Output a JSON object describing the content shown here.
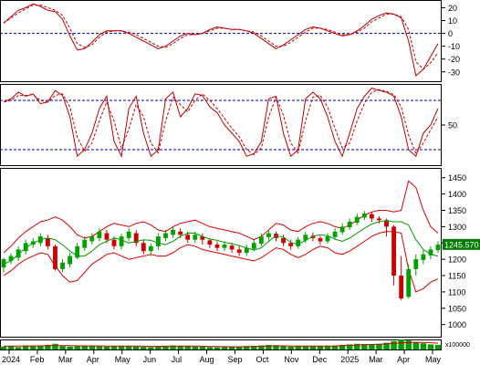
{
  "chart_data": [
    {
      "id": "momentum",
      "type": "line",
      "ylim": [
        -38,
        26
      ],
      "ticks": [
        20,
        10,
        0,
        -10,
        -20,
        -30
      ],
      "reference_line": 0,
      "series": [
        {
          "values": [
            8,
            13,
            18,
            20,
            23,
            21,
            18,
            17,
            11,
            -2,
            -13,
            -12,
            -7,
            -1,
            2,
            2,
            2,
            0,
            -3,
            -6,
            -9,
            -12,
            -10,
            -6,
            -2,
            0,
            -1,
            0,
            3,
            5,
            4,
            3,
            3,
            2,
            0,
            -4,
            -8,
            -12,
            -9,
            -5,
            -1,
            3,
            5,
            4,
            2,
            0,
            -2,
            -1,
            2,
            6,
            11,
            14,
            16,
            15,
            12,
            -6,
            -33,
            -28,
            -18,
            -8
          ],
          "color": "#c00000"
        },
        {
          "values": [
            8,
            12,
            16,
            19,
            22,
            22,
            20,
            18,
            14,
            4,
            -8,
            -11,
            -9,
            -3,
            1,
            2,
            2,
            1,
            -1,
            -4,
            -7,
            -10,
            -11,
            -8,
            -4,
            -1,
            -1,
            0,
            2,
            4,
            4,
            3,
            3,
            2,
            1,
            -2,
            -6,
            -10,
            -10,
            -7,
            -3,
            1,
            4,
            4,
            3,
            1,
            -1,
            -1,
            1,
            4,
            9,
            12,
            15,
            15,
            13,
            3,
            -22,
            -28,
            -23,
            -15
          ],
          "color": "#c00000",
          "dashed": true
        }
      ]
    },
    {
      "id": "oscillator",
      "type": "line",
      "ylim": [
        0,
        100
      ],
      "ticks": [
        50
      ],
      "reference_lines": [
        80,
        20
      ],
      "series": [
        {
          "values": [
            78,
            82,
            90,
            85,
            88,
            76,
            78,
            92,
            86,
            60,
            12,
            20,
            40,
            70,
            85,
            30,
            12,
            70,
            85,
            40,
            12,
            20,
            82,
            90,
            60,
            70,
            88,
            86,
            72,
            65,
            50,
            40,
            30,
            12,
            15,
            30,
            82,
            85,
            40,
            12,
            20,
            82,
            90,
            82,
            60,
            30,
            12,
            40,
            70,
            85,
            95,
            92,
            90,
            85,
            60,
            20,
            12,
            40,
            50,
            70
          ],
          "color": "#c00000"
        },
        {
          "values": [
            78,
            80,
            86,
            86,
            87,
            80,
            78,
            86,
            88,
            72,
            35,
            18,
            28,
            55,
            78,
            55,
            22,
            45,
            75,
            60,
            28,
            16,
            55,
            84,
            75,
            66,
            80,
            88,
            80,
            70,
            58,
            46,
            36,
            20,
            14,
            22,
            60,
            84,
            62,
            28,
            16,
            55,
            84,
            86,
            72,
            46,
            22,
            28,
            55,
            76,
            90,
            93,
            91,
            87,
            72,
            38,
            15,
            28,
            44,
            60
          ],
          "color": "#c00000",
          "dashed": true
        }
      ]
    },
    {
      "id": "price",
      "type": "candlestick",
      "ylim": [
        960,
        1480
      ],
      "ticks": [
        1450,
        1400,
        1350,
        1300,
        1250,
        1200,
        1150,
        1100,
        1050,
        1000
      ],
      "last_value": "1245.570",
      "bollinger_upper": [
        1220,
        1240,
        1265,
        1285,
        1300,
        1315,
        1320,
        1330,
        1320,
        1300,
        1275,
        1265,
        1270,
        1285,
        1300,
        1310,
        1305,
        1300,
        1310,
        1315,
        1305,
        1290,
        1285,
        1300,
        1310,
        1315,
        1320,
        1310,
        1300,
        1295,
        1290,
        1285,
        1280,
        1270,
        1260,
        1270,
        1290,
        1310,
        1305,
        1290,
        1285,
        1300,
        1310,
        1315,
        1310,
        1300,
        1295,
        1305,
        1320,
        1335,
        1345,
        1350,
        1350,
        1345,
        1350,
        1440,
        1420,
        1350,
        1300,
        1280
      ],
      "bollinger_lower": [
        1150,
        1165,
        1185,
        1200,
        1210,
        1220,
        1215,
        1180,
        1150,
        1130,
        1135,
        1160,
        1185,
        1200,
        1215,
        1220,
        1210,
        1200,
        1205,
        1210,
        1215,
        1210,
        1210,
        1220,
        1235,
        1245,
        1240,
        1230,
        1225,
        1220,
        1215,
        1210,
        1205,
        1200,
        1195,
        1205,
        1220,
        1235,
        1230,
        1215,
        1205,
        1215,
        1230,
        1240,
        1235,
        1220,
        1215,
        1225,
        1240,
        1255,
        1270,
        1280,
        1285,
        1285,
        1280,
        1170,
        1100,
        1110,
        1130,
        1140
      ],
      "ma": [
        1185,
        1195,
        1215,
        1235,
        1250,
        1260,
        1265,
        1260,
        1245,
        1225,
        1210,
        1210,
        1225,
        1245,
        1255,
        1265,
        1260,
        1250,
        1255,
        1260,
        1258,
        1250,
        1245,
        1255,
        1270,
        1280,
        1280,
        1270,
        1262,
        1258,
        1252,
        1248,
        1242,
        1235,
        1228,
        1235,
        1255,
        1272,
        1268,
        1252,
        1245,
        1258,
        1270,
        1275,
        1272,
        1262,
        1255,
        1265,
        1280,
        1295,
        1308,
        1315,
        1318,
        1315,
        1315,
        1305,
        1260,
        1230,
        1215,
        1210
      ],
      "candles": [
        [
          1175,
          1200,
          1160,
          1205
        ],
        [
          1195,
          1210,
          1185,
          1218
        ],
        [
          1205,
          1230,
          1195,
          1240
        ],
        [
          1225,
          1250,
          1215,
          1260
        ],
        [
          1245,
          1255,
          1235,
          1265
        ],
        [
          1250,
          1270,
          1240,
          1280
        ],
        [
          1265,
          1240,
          1230,
          1275
        ],
        [
          1240,
          1170,
          1165,
          1245
        ],
        [
          1170,
          1190,
          1160,
          1200
        ],
        [
          1185,
          1210,
          1175,
          1220
        ],
        [
          1205,
          1240,
          1200,
          1250
        ],
        [
          1235,
          1260,
          1225,
          1270
        ],
        [
          1255,
          1270,
          1245,
          1280
        ],
        [
          1265,
          1285,
          1255,
          1295
        ],
        [
          1280,
          1260,
          1250,
          1290
        ],
        [
          1260,
          1240,
          1230,
          1270
        ],
        [
          1240,
          1270,
          1230,
          1278
        ],
        [
          1265,
          1285,
          1255,
          1295
        ],
        [
          1280,
          1250,
          1240,
          1290
        ],
        [
          1250,
          1225,
          1215,
          1260
        ],
        [
          1225,
          1240,
          1210,
          1248
        ],
        [
          1240,
          1270,
          1230,
          1280
        ],
        [
          1265,
          1280,
          1255,
          1290
        ],
        [
          1275,
          1290,
          1265,
          1300
        ],
        [
          1285,
          1275,
          1265,
          1295
        ],
        [
          1275,
          1260,
          1250,
          1285
        ],
        [
          1260,
          1275,
          1250,
          1285
        ],
        [
          1270,
          1260,
          1245,
          1280
        ],
        [
          1258,
          1245,
          1235,
          1265
        ],
        [
          1245,
          1235,
          1225,
          1255
        ],
        [
          1235,
          1245,
          1225,
          1255
        ],
        [
          1242,
          1230,
          1220,
          1250
        ],
        [
          1230,
          1220,
          1210,
          1240
        ],
        [
          1220,
          1235,
          1210,
          1245
        ],
        [
          1232,
          1250,
          1225,
          1260
        ],
        [
          1248,
          1270,
          1240,
          1280
        ],
        [
          1268,
          1280,
          1258,
          1290
        ],
        [
          1278,
          1265,
          1255,
          1285
        ],
        [
          1265,
          1250,
          1240,
          1275
        ],
        [
          1250,
          1240,
          1230,
          1260
        ],
        [
          1240,
          1260,
          1232,
          1268
        ],
        [
          1258,
          1275,
          1250,
          1285
        ],
        [
          1272,
          1265,
          1255,
          1282
        ],
        [
          1265,
          1255,
          1245,
          1272
        ],
        [
          1255,
          1270,
          1248,
          1280
        ],
        [
          1268,
          1285,
          1260,
          1295
        ],
        [
          1283,
          1300,
          1275,
          1310
        ],
        [
          1298,
          1315,
          1290,
          1325
        ],
        [
          1312,
          1330,
          1305,
          1340
        ],
        [
          1328,
          1340,
          1320,
          1348
        ],
        [
          1338,
          1325,
          1315,
          1345
        ],
        [
          1325,
          1320,
          1310,
          1332
        ],
        [
          1320,
          1300,
          1270,
          1325
        ],
        [
          1300,
          1150,
          1120,
          1305
        ],
        [
          1150,
          1080,
          1075,
          1210
        ],
        [
          1085,
          1170,
          1080,
          1185
        ],
        [
          1170,
          1200,
          1150,
          1215
        ],
        [
          1198,
          1215,
          1185,
          1228
        ],
        [
          1212,
          1230,
          1200,
          1240
        ],
        [
          1228,
          1245,
          1220,
          1255
        ]
      ]
    },
    {
      "id": "volume",
      "type": "bar",
      "unit_label": "x100000",
      "ylim": [
        0,
        100
      ],
      "values": [
        35,
        40,
        30,
        45,
        38,
        42,
        50,
        60,
        40,
        35,
        38,
        42,
        45,
        40,
        35,
        38,
        40,
        42,
        36,
        32,
        30,
        35,
        40,
        45,
        42,
        38,
        35,
        33,
        30,
        28,
        30,
        32,
        35,
        40,
        42,
        45,
        50,
        48,
        40,
        35,
        38,
        42,
        40,
        38,
        40,
        45,
        50,
        55,
        60,
        58,
        55,
        60,
        70,
        85,
        100,
        90,
        75,
        65,
        55,
        50
      ],
      "ma": [
        40,
        40,
        40,
        41,
        41,
        42,
        43,
        44,
        44,
        43,
        42,
        42,
        42,
        41,
        40,
        40,
        40,
        40,
        39,
        38,
        37,
        37,
        38,
        39,
        40,
        40,
        39,
        38,
        36,
        35,
        34,
        33,
        33,
        34,
        36,
        38,
        40,
        42,
        42,
        41,
        40,
        40,
        40,
        40,
        40,
        41,
        43,
        46,
        49,
        52,
        54,
        56,
        59,
        63,
        68,
        72,
        74,
        73,
        70,
        66
      ]
    }
  ],
  "x_axis": {
    "labels": [
      "2024",
      "Feb",
      "Mar",
      "Apr",
      "May",
      "Jun",
      "Jul",
      "Aug",
      "Sep",
      "Oct",
      "Nov",
      "Dec",
      "2025",
      "Mar",
      "Apr",
      "May"
    ]
  },
  "colors": {
    "up": "#00a000",
    "down": "#d00000",
    "ma": "#00a000",
    "band": "#e00000",
    "osc": "#c00000",
    "ref": "#0000c0",
    "last_value_bg": "#007a00",
    "volume_bar": "#00a000",
    "volume_ma": "#d00000"
  }
}
